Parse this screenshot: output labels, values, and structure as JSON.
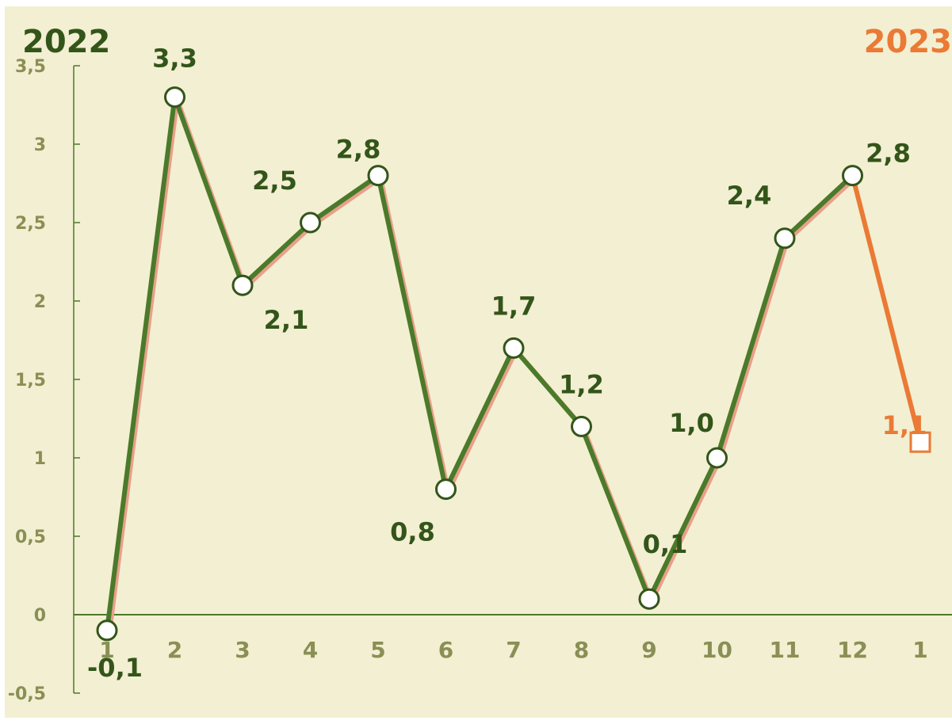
{
  "colors": {
    "background": "#f3efd2",
    "primary": "#4a7a2a",
    "dark_label": "#33551a",
    "axis_label": "#8a8f55",
    "accent": "#ea7a35",
    "shadow": "#e8a08a",
    "stem": "#3e6a22",
    "marker_fill": "#ffffff"
  },
  "year_labels": {
    "left": "2022",
    "right": "2023"
  },
  "chart_data": {
    "type": "line",
    "categories": [
      "1",
      "2",
      "3",
      "4",
      "5",
      "6",
      "7",
      "8",
      "9",
      "10",
      "11",
      "12",
      "1"
    ],
    "series": [
      {
        "values": [
          -0.1,
          3.3,
          2.1,
          2.5,
          2.8,
          0.8,
          1.7,
          1.2,
          0.1,
          1.0,
          2.4,
          2.8,
          null
        ]
      },
      {
        "values": [
          null,
          null,
          null,
          null,
          null,
          null,
          null,
          null,
          null,
          null,
          null,
          2.8,
          1.1
        ]
      }
    ],
    "data_labels": [
      "-0,1",
      "3,3",
      "2,1",
      "2,5",
      "2,8",
      "0,8",
      "1,7",
      "1,2",
      "0,1",
      "1,0",
      "2,4",
      "2,8",
      "1,1"
    ],
    "y_ticks": [
      3.5,
      3,
      2.5,
      2,
      1.5,
      1,
      0.5,
      0,
      -0.5
    ],
    "y_tick_labels": [
      "3,5",
      "3",
      "2,5",
      "2",
      "1,5",
      "1",
      "0,5",
      "0",
      "-0,5"
    ],
    "ylim": [
      -0.5,
      3.5
    ],
    "grid": false,
    "legend": false,
    "drop_lines": true
  }
}
